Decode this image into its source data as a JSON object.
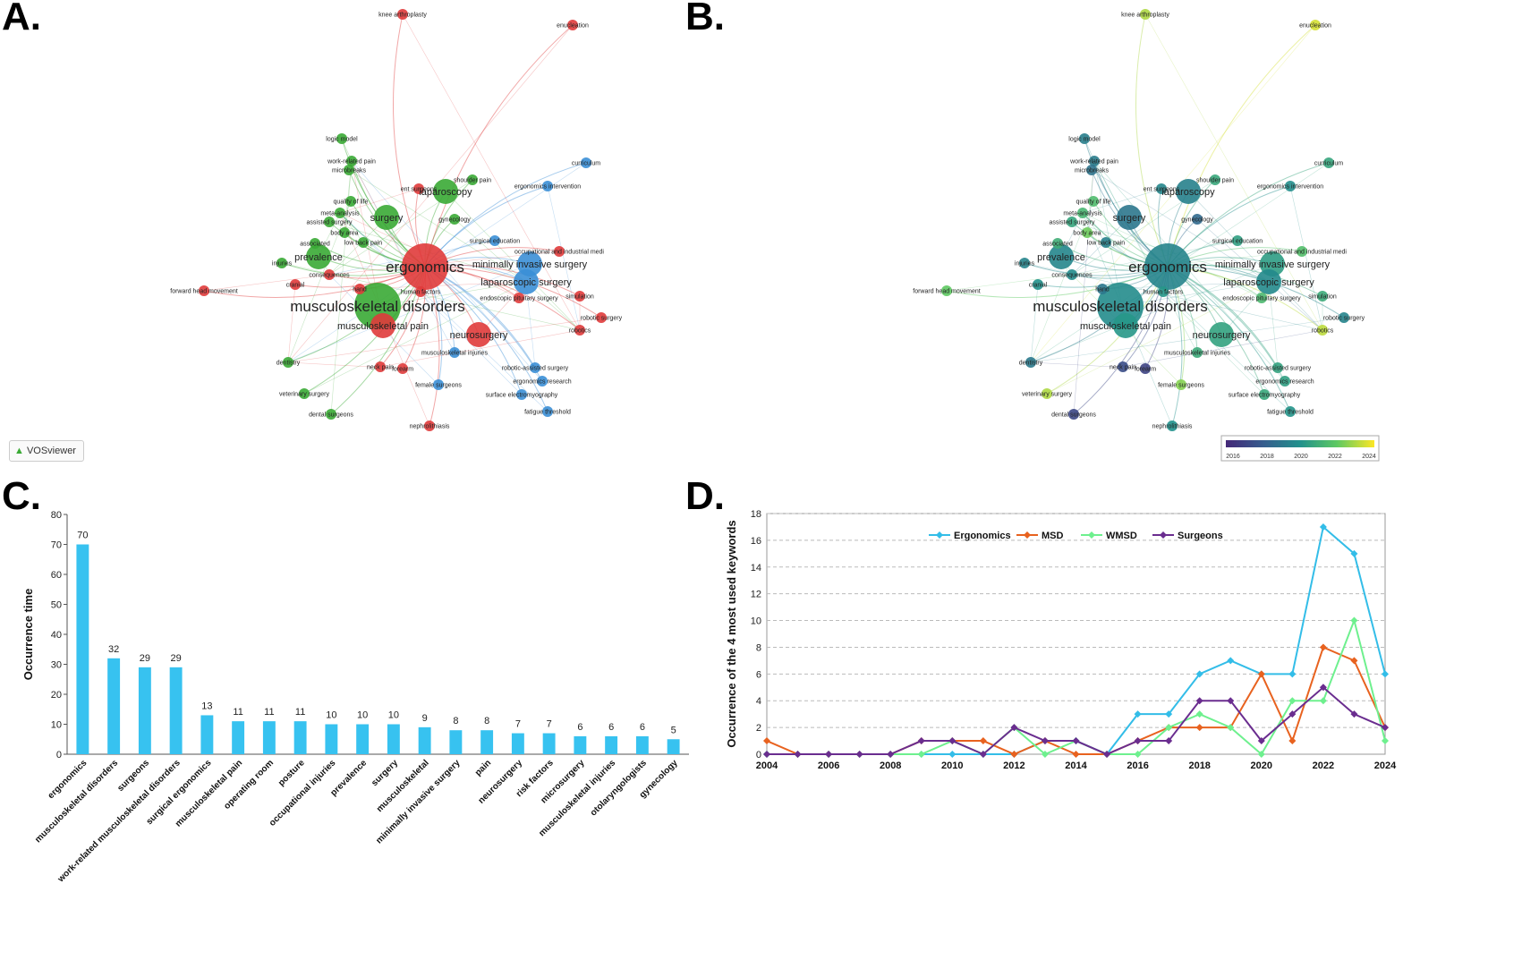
{
  "panels": {
    "a": {
      "letter": "A."
    },
    "b": {
      "letter": "B."
    },
    "c": {
      "letter": "C."
    },
    "d": {
      "letter": "D."
    }
  },
  "colors": {
    "red_cluster": "#e03b3b",
    "green_cluster": "#3aaa35",
    "blue_cluster": "#3b8fd6",
    "bar": "#37c2f0",
    "ergonomics": "#33bde8",
    "msd": "#e8621f",
    "wmsd": "#6ef08e",
    "surgeons": "#6a2d8f"
  },
  "network": {
    "watermark": "VOSviewer",
    "legend_ticks": [
      "2016",
      "2018",
      "2020",
      "2022",
      "2024"
    ],
    "nodes": [
      {
        "label": "ergonomics",
        "cluster": "red",
        "year": 2019.5,
        "size": 3
      },
      {
        "label": "musculoskeletal disorders",
        "cluster": "green",
        "year": 2019.8,
        "size": 3
      },
      {
        "label": "musculoskeletal pain",
        "cluster": "red",
        "year": 2020.2,
        "size": 2
      },
      {
        "label": "prevalence",
        "cluster": "green",
        "year": 2019.6,
        "size": 2
      },
      {
        "label": "surgery",
        "cluster": "green",
        "year": 2019.0,
        "size": 2
      },
      {
        "label": "laparoscopy",
        "cluster": "green",
        "year": 2019.4,
        "size": 2
      },
      {
        "label": "minimally invasive surgery",
        "cluster": "blue",
        "year": 2020.4,
        "size": 2
      },
      {
        "label": "laparoscopic surgery",
        "cluster": "blue",
        "year": 2019.7,
        "size": 2
      },
      {
        "label": "neurosurgery",
        "cluster": "red",
        "year": 2020.6,
        "size": 2
      },
      {
        "label": "musculoskeletal injuries",
        "cluster": "blue",
        "year": 2020.9,
        "size": 1
      },
      {
        "label": "surface electromyography",
        "cluster": "blue",
        "year": 2020.8,
        "size": 1
      },
      {
        "label": "surgical education",
        "cluster": "blue",
        "year": 2020.5,
        "size": 1
      },
      {
        "label": "gynecology",
        "cluster": "green",
        "year": 2018.5,
        "size": 1
      },
      {
        "label": "quality of life",
        "cluster": "green",
        "year": 2021.5,
        "size": 1
      },
      {
        "label": "work-related pain",
        "cluster": "green",
        "year": 2019.2,
        "size": 1
      },
      {
        "label": "microbreaks",
        "cluster": "green",
        "year": 2018.9,
        "size": 1
      },
      {
        "label": "logic model",
        "cluster": "green",
        "year": 2019.3,
        "size": 1
      },
      {
        "label": "ent surgeons",
        "cluster": "red",
        "year": 2019.6,
        "size": 1
      },
      {
        "label": "shoulder pain",
        "cluster": "green",
        "year": 2020.8,
        "size": 1
      },
      {
        "label": "ergonomics intervention",
        "cluster": "blue",
        "year": 2019.9,
        "size": 1
      },
      {
        "label": "curriculum",
        "cluster": "blue",
        "year": 2020.7,
        "size": 1
      },
      {
        "label": "meta-analysis",
        "cluster": "green",
        "year": 2021.3,
        "size": 1
      },
      {
        "label": "assisted surgery",
        "cluster": "green",
        "year": 2020.7,
        "size": 1
      },
      {
        "label": "body area",
        "cluster": "green",
        "year": 2022.2,
        "size": 1
      },
      {
        "label": "low back pain",
        "cluster": "green",
        "year": 2019.4,
        "size": 1
      },
      {
        "label": "associated",
        "cluster": "green",
        "year": 2021.0,
        "size": 1
      },
      {
        "label": "injuries",
        "cluster": "green",
        "year": 2019.5,
        "size": 1
      },
      {
        "label": "cranial",
        "cluster": "red",
        "year": 2020.0,
        "size": 1
      },
      {
        "label": "consequences",
        "cluster": "red",
        "year": 2019.8,
        "size": 1
      },
      {
        "label": "hand",
        "cluster": "red",
        "year": 2019.0,
        "size": 1
      },
      {
        "label": "human factors",
        "cluster": "red",
        "year": 2020.2,
        "size": 1
      },
      {
        "label": "endoscopic pituitary surgery",
        "cluster": "red",
        "year": 2021.4,
        "size": 1
      },
      {
        "label": "occupational and industrial medi",
        "cluster": "red",
        "year": 2021.6,
        "size": 1
      },
      {
        "label": "simulation",
        "cluster": "red",
        "year": 2020.9,
        "size": 1
      },
      {
        "label": "robotic surgery",
        "cluster": "red",
        "year": 2019.5,
        "size": 1
      },
      {
        "label": "robotics",
        "cluster": "red",
        "year": 2023.2,
        "size": 1
      },
      {
        "label": "robotic-assisted surgery",
        "cluster": "blue",
        "year": 2020.6,
        "size": 1
      },
      {
        "label": "ergonomics research",
        "cluster": "blue",
        "year": 2020.5,
        "size": 1
      },
      {
        "label": "fatigue threshold",
        "cluster": "blue",
        "year": 2020.1,
        "size": 1
      },
      {
        "label": "female surgeons",
        "cluster": "blue",
        "year": 2022.5,
        "size": 1
      },
      {
        "label": "neck pain",
        "cluster": "red",
        "year": 2017.4,
        "size": 1
      },
      {
        "label": "forearm",
        "cluster": "red",
        "year": 2017.0,
        "size": 1
      },
      {
        "label": "dentistry",
        "cluster": "green",
        "year": 2019.1,
        "size": 1
      },
      {
        "label": "veterinary surgery",
        "cluster": "green",
        "year": 2023.0,
        "size": 1
      },
      {
        "label": "dental surgeons",
        "cluster": "green",
        "year": 2017.2,
        "size": 1
      },
      {
        "label": "nephrolithiasis",
        "cluster": "red",
        "year": 2020.0,
        "size": 1
      },
      {
        "label": "forward head movement",
        "cluster": "red",
        "year": 2022.0,
        "size": 1
      },
      {
        "label": "knee arthroplasty",
        "cluster": "red",
        "year": 2023.0,
        "size": 1
      },
      {
        "label": "enucleation",
        "cluster": "red",
        "year": 2023.5,
        "size": 1
      }
    ]
  },
  "chart_data": [
    {
      "type": "bar",
      "title": "",
      "xlabel": "",
      "ylabel": "Occurrence time",
      "ylim": [
        0,
        80
      ],
      "yticks": [
        0,
        10,
        20,
        30,
        40,
        50,
        60,
        70,
        80
      ],
      "grid": false,
      "categories": [
        "ergonomics",
        "musculoskeletal disorders",
        "surgeons",
        "work-related musculoskeletal disorders",
        "surgical ergonomics",
        "musculoskeletal pain",
        "operating room",
        "posture",
        "occupational injuries",
        "prevalence",
        "surgery",
        "musculoskeletal",
        "minimally invasive surgery",
        "pain",
        "neurosurgery",
        "risk factors",
        "microsurgery",
        "musculoskeletal injuries",
        "otolaryngologists",
        "gynecology"
      ],
      "values": [
        70,
        32,
        29,
        29,
        13,
        11,
        11,
        11,
        10,
        10,
        10,
        9,
        8,
        8,
        7,
        7,
        6,
        6,
        6,
        5
      ]
    },
    {
      "type": "line",
      "title": "",
      "xlabel": "",
      "ylabel": "Occurrence of the 4 most used keywords",
      "ylim": [
        0,
        18
      ],
      "yticks": [
        0,
        2,
        4,
        6,
        8,
        10,
        12,
        14,
        16,
        18
      ],
      "xticks": [
        2004,
        2006,
        2008,
        2010,
        2012,
        2014,
        2016,
        2018,
        2020,
        2022,
        2024
      ],
      "grid": true,
      "legend": "top",
      "x": [
        2004,
        2005,
        2006,
        2007,
        2008,
        2009,
        2010,
        2011,
        2012,
        2013,
        2014,
        2015,
        2016,
        2017,
        2018,
        2019,
        2020,
        2021,
        2022,
        2023,
        2024
      ],
      "series": [
        {
          "name": "Ergonomics",
          "values": [
            0,
            0,
            0,
            0,
            0,
            0,
            0,
            0,
            0,
            1,
            1,
            0,
            3,
            3,
            6,
            7,
            6,
            6,
            17,
            15,
            6
          ]
        },
        {
          "name": "MSD",
          "values": [
            1,
            0,
            0,
            0,
            0,
            1,
            1,
            1,
            0,
            1,
            0,
            0,
            1,
            2,
            2,
            2,
            6,
            1,
            8,
            7,
            2
          ]
        },
        {
          "name": "WMSD",
          "values": [
            0,
            0,
            0,
            0,
            0,
            0,
            1,
            0,
            2,
            0,
            1,
            0,
            0,
            2,
            3,
            2,
            0,
            4,
            4,
            10,
            1
          ]
        },
        {
          "name": "Surgeons",
          "values": [
            0,
            0,
            0,
            0,
            0,
            1,
            1,
            0,
            2,
            1,
            1,
            0,
            1,
            1,
            4,
            4,
            1,
            3,
            5,
            3,
            2
          ]
        }
      ]
    }
  ]
}
